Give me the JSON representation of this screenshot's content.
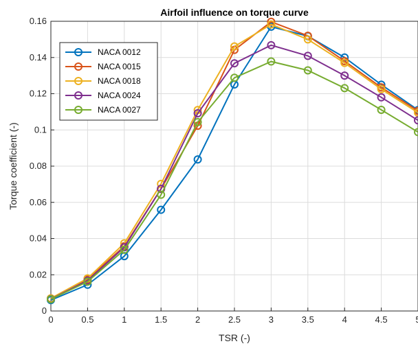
{
  "chart_data": {
    "type": "line",
    "title": "Airfoil influence on torque curve",
    "xlabel": "TSR (-)",
    "ylabel": "Torque coefficient (-)",
    "xlim": [
      0,
      5
    ],
    "ylim": [
      0,
      0.16
    ],
    "x_ticks": [
      "0",
      "0.5",
      "1",
      "1.5",
      "2",
      "2.5",
      "3",
      "3.5",
      "4",
      "4.5",
      "5"
    ],
    "y_ticks": [
      "0",
      "0.02",
      "0.04",
      "0.06",
      "0.08",
      "0.1",
      "0.12",
      "0.14",
      "0.16"
    ],
    "grid": true,
    "legend_position": "top-left",
    "x": [
      0,
      0.5,
      1,
      1.5,
      2,
      2.5,
      3,
      3.5,
      4,
      4.5,
      5
    ],
    "series": [
      {
        "name": "NACA 0012",
        "color": "#0072BD",
        "values": [
          0.006,
          0.0145,
          0.0303,
          0.0559,
          0.0837,
          0.1251,
          0.157,
          0.1518,
          0.14,
          0.125,
          0.111
        ]
      },
      {
        "name": "NACA 0015",
        "color": "#D95319",
        "values": [
          0.0068,
          0.0175,
          0.0358,
          0.0674,
          0.1023,
          0.1442,
          0.1597,
          0.152,
          0.138,
          0.1235,
          0.1105
        ]
      },
      {
        "name": "NACA 0018",
        "color": "#EDB120",
        "values": [
          0.007,
          0.018,
          0.0374,
          0.0702,
          0.111,
          0.1461,
          0.1583,
          0.15,
          0.137,
          0.1225,
          0.1095
        ]
      },
      {
        "name": "NACA 0024",
        "color": "#7E2F8E",
        "values": [
          0.0066,
          0.0168,
          0.0352,
          0.0675,
          0.1092,
          0.1368,
          0.1468,
          0.1409,
          0.13,
          0.118,
          0.1053
        ]
      },
      {
        "name": "NACA 0027",
        "color": "#77AC30",
        "values": [
          0.0065,
          0.0162,
          0.0338,
          0.0642,
          0.1043,
          0.1288,
          0.1378,
          0.1329,
          0.1231,
          0.1111,
          0.0988
        ]
      }
    ]
  }
}
